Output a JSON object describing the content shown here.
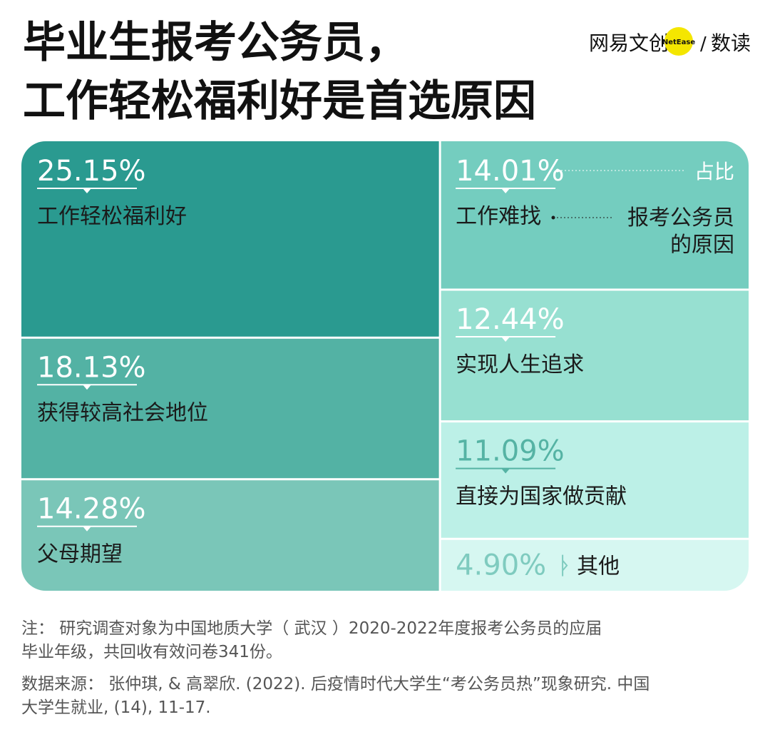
{
  "chart_data": {
    "type": "treemap",
    "title": [
      "毕业生报考公务员，",
      "工作轻松福利好是首选原因"
    ],
    "brand": {
      "name": "网易文创",
      "badge": "NetEase",
      "separator": "/",
      "column": "数读"
    },
    "categories": [
      "工作轻松福利好",
      "获得较高社会地位",
      "父母期望",
      "工作难找",
      "实现人生追求",
      "直接为国家做贡献",
      "其他"
    ],
    "values": [
      25.15,
      18.13,
      14.28,
      14.01,
      12.44,
      11.09,
      4.9
    ],
    "value_labels": [
      "25.15%",
      "18.13%",
      "14.28%",
      "14.01%",
      "12.44%",
      "11.09%",
      "4.90%"
    ],
    "colors": [
      "#2a9a90",
      "#53b2a4",
      "#7ac6b8",
      "#74cdbf",
      "#97e0d1",
      "#bcf0e7",
      "#d6f7f1"
    ],
    "legend": {
      "value": "占比",
      "category": [
        "报考公务员",
        "的原因"
      ]
    },
    "note": [
      "注： 研究调查对象为中国地质大学（ 武汉 ）2020-2022年度报考公务员的应届",
      "毕业年级，共回收有效问卷341份。"
    ],
    "source": [
      "数据来源： 张仲琪, & 高翠欣. (2022). 后疫情时代大学生“考公务员热”现象研究. 中国",
      "大学生就业, (14), 11-17."
    ]
  }
}
